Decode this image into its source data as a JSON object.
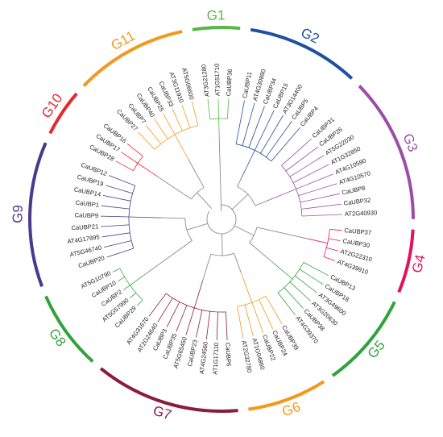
{
  "tree": {
    "groups": [
      {
        "name": "G1",
        "color": "#59b547",
        "leaves": [
          "AT3G21280",
          "AT1G51710",
          "CaUBP36"
        ]
      },
      {
        "name": "G2",
        "color": "#1e4fa0",
        "leaves": [
          "CaUBP11",
          "AT4G30890",
          "CaUBP34",
          "CaUBP15",
          "AT3G14400",
          "CaUBP5",
          "CaUBP4"
        ]
      },
      {
        "name": "G3",
        "color": "#9b4ea6",
        "leaves": [
          "CaUBP31",
          "CaUBP26",
          "AT5G22030",
          "AT1G32850",
          "AT4G10590",
          "AT4G10570",
          "CaUBP8",
          "CaUBP32",
          "AT2G40930"
        ]
      },
      {
        "name": "G4",
        "color": "#e2125c",
        "leaves": [
          "CaUBP37",
          "CaUBP30",
          "AT2G22310",
          "AT4G39910"
        ]
      },
      {
        "name": "G5",
        "color": "#2fa33c",
        "leaves": [
          "CaUBP13",
          "CaUBP18",
          "AT3G49600",
          "AT3G20630",
          "CaUBP38",
          "AT4G39370"
        ]
      },
      {
        "name": "G6",
        "color": "#f2991c",
        "leaves": [
          "CaUBP39",
          "CaUBP24",
          "CaUBP22",
          "AT1G04860",
          "AT2G32780"
        ]
      },
      {
        "name": "G7",
        "color": "#8b1c3c",
        "leaves": [
          "CaUBP6",
          "AT1G17110",
          "AT4G24560",
          "CaUBP23",
          "AT5G65450",
          "CaUBP35",
          "CaUBP3",
          "AT2G24640",
          "AT4G31670"
        ]
      },
      {
        "name": "G8",
        "color": "#2fa33c",
        "leaves": [
          "CaUBP29",
          "AT5G57990",
          "CaUBP2",
          "CaUBP10",
          "AT5G10790"
        ]
      },
      {
        "name": "G9",
        "color": "#4a3a8c",
        "leaves": [
          "CaUBP20",
          "AT5G46740",
          "AT4G17895",
          "CaUBP21",
          "CaUBP9",
          "CaUBP1",
          "CaUBP14",
          "CaUBP19",
          "CaUBP12"
        ]
      },
      {
        "name": "G10",
        "color": "#e8262b",
        "leaves": [
          "CaUBP28",
          "CaUBP17",
          "CaUBP16"
        ]
      },
      {
        "name": "G11",
        "color": "#f2991c",
        "leaves": [
          "CaUBP27",
          "CaUBP7",
          "CaUBP40",
          "CaUBP25",
          "CaUBP33",
          "AT3G11910",
          "AT5G06600"
        ]
      }
    ]
  }
}
